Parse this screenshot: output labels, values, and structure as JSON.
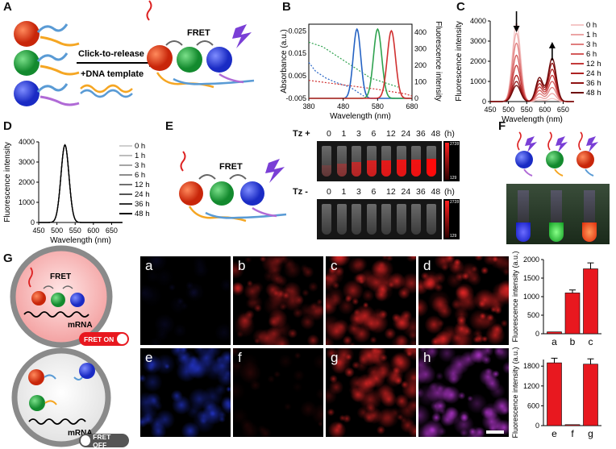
{
  "panels": {
    "A": "A",
    "B": "B",
    "C": "C",
    "D": "D",
    "E": "E",
    "F": "F",
    "G": "G"
  },
  "panelA": {
    "click_label": "Click-to-release",
    "template_label": "+DNA template",
    "fret_label": "FRET"
  },
  "panelB": {
    "chart_data": {
      "type": "line",
      "xlabel": "Wavelength (nm)",
      "ylabel_left": "Absorbance (a.u.)",
      "ylabel_right": "Fluorescence intensity",
      "x_ticks": [
        "380",
        "480",
        "580",
        "680"
      ],
      "y_left_ticks": [
        "0.025",
        "0.015",
        "0.005",
        "-0.005"
      ],
      "y_right_ticks": [
        "400",
        "300",
        "200",
        "100",
        "0"
      ],
      "xlim": [
        380,
        680
      ],
      "ylim_left": [
        -0.005,
        0.028
      ],
      "ylim_right": [
        0,
        450
      ],
      "absorbance": [
        {
          "color": "#2563c4",
          "x": [
            380,
            400,
            430,
            460,
            480,
            500,
            520,
            540
          ],
          "y": [
            0.011,
            0.007,
            0.004,
            0.002,
            0.001,
            0.0,
            -0.002,
            -0.004
          ]
        },
        {
          "color": "#2fa24f",
          "x": [
            380,
            420,
            460,
            500,
            530,
            560,
            600,
            640
          ],
          "y": [
            0.02,
            0.018,
            0.014,
            0.01,
            0.007,
            0.004,
            0.002,
            0.0
          ]
        },
        {
          "color": "#d03030",
          "x": [
            380,
            430,
            480,
            530,
            580,
            620,
            660,
            680
          ],
          "y": [
            0.003,
            0.002,
            0.001,
            0.0,
            -0.001,
            -0.002,
            -0.003,
            -0.004
          ]
        }
      ],
      "emission": [
        {
          "color": "#2563c4",
          "peak": 520,
          "height": 420,
          "width": 11
        },
        {
          "color": "#2fa24f",
          "peak": 580,
          "height": 420,
          "width": 12
        },
        {
          "color": "#d03030",
          "peak": 620,
          "height": 410,
          "width": 12
        }
      ]
    }
  },
  "panelC": {
    "chart_data": {
      "type": "line",
      "xlabel": "Wavelength (nm)",
      "ylabel": "Fluorescence intensity",
      "x_ticks": [
        "450",
        "500",
        "550",
        "600",
        "650"
      ],
      "y_ticks": [
        "4000",
        "3000",
        "2000",
        "1000",
        "0"
      ],
      "xlim": [
        450,
        680
      ],
      "ylim": [
        0,
        4000
      ],
      "legend": [
        "0 h",
        "1 h",
        "3 h",
        "6 h",
        "12 h",
        "24 h",
        "36 h",
        "48 h"
      ],
      "series": [
        {
          "color": "#f4c7c7",
          "green": 3900,
          "red": 150
        },
        {
          "color": "#eca5a5",
          "green": 3400,
          "red": 400
        },
        {
          "color": "#e07e7e",
          "green": 2900,
          "red": 700
        },
        {
          "color": "#d45a5a",
          "green": 2300,
          "red": 1000
        },
        {
          "color": "#c43a3a",
          "green": 1800,
          "red": 1300
        },
        {
          "color": "#ad2222",
          "green": 1300,
          "red": 1600
        },
        {
          "color": "#8f1414",
          "green": 1000,
          "red": 1900
        },
        {
          "color": "#6d0a0a",
          "green": 800,
          "red": 2150
        }
      ]
    }
  },
  "panelD": {
    "chart_data": {
      "type": "line",
      "xlabel": "Wavelength (nm)",
      "ylabel": "Fluorescence intensity",
      "x_ticks": [
        "450",
        "500",
        "550",
        "600",
        "650"
      ],
      "y_ticks": [
        "4000",
        "3000",
        "2000",
        "1000",
        "0"
      ],
      "xlim": [
        450,
        680
      ],
      "ylim": [
        0,
        4000
      ],
      "legend": [
        "0 h",
        "1 h",
        "3 h",
        "6 h",
        "12 h",
        "24 h",
        "36 h",
        "48 h"
      ],
      "series": [
        {
          "color": "#cfcfcf",
          "green": 3850
        },
        {
          "color": "#bdbdbd",
          "green": 3850
        },
        {
          "color": "#a5a5a5",
          "green": 3850
        },
        {
          "color": "#8c8c8c",
          "green": 3850
        },
        {
          "color": "#707070",
          "green": 3850
        },
        {
          "color": "#555555",
          "green": 3850
        },
        {
          "color": "#333333",
          "green": 3850
        },
        {
          "color": "#000000",
          "green": 3850
        }
      ]
    }
  },
  "panelE": {
    "fret_label": "FRET",
    "tz_plus": "Tz +",
    "tz_minus": "Tz -",
    "times": [
      "0",
      "1",
      "3",
      "6",
      "12",
      "24",
      "36",
      "48"
    ],
    "unit": "(h)",
    "scale_max": "2728",
    "scale_min": "129",
    "tube_intensity_plus": [
      0.05,
      0.25,
      0.55,
      0.7,
      0.8,
      0.85,
      0.9,
      1.0
    ]
  },
  "panelG": {
    "fret_label": "FRET",
    "mrna_label": "mRNA",
    "fret_on": "FRET ON",
    "fret_off": "FRET OFF",
    "micro_labels": [
      "a",
      "b",
      "c",
      "d",
      "e",
      "f",
      "g",
      "h"
    ],
    "chart_data": [
      {
        "type": "bar",
        "ylabel": "Fluorescence intensity (a.u.)",
        "categories": [
          "a",
          "b",
          "c"
        ],
        "values": [
          50,
          1100,
          1750
        ],
        "errors": [
          0,
          80,
          160
        ],
        "ylim": [
          0,
          2000
        ],
        "y_ticks": [
          "2000",
          "1500",
          "1000",
          "500",
          "0"
        ],
        "color": "#e8181f"
      },
      {
        "type": "bar",
        "ylabel": "Fluorescence intensity (a.u.)",
        "categories": [
          "e",
          "f",
          "g"
        ],
        "values": [
          1900,
          30,
          1860
        ],
        "errors": [
          140,
          0,
          160
        ],
        "ylim": [
          0,
          2000
        ],
        "y_ticks": [
          "1800",
          "1200",
          "600",
          "0"
        ],
        "color": "#e8181f"
      }
    ]
  }
}
